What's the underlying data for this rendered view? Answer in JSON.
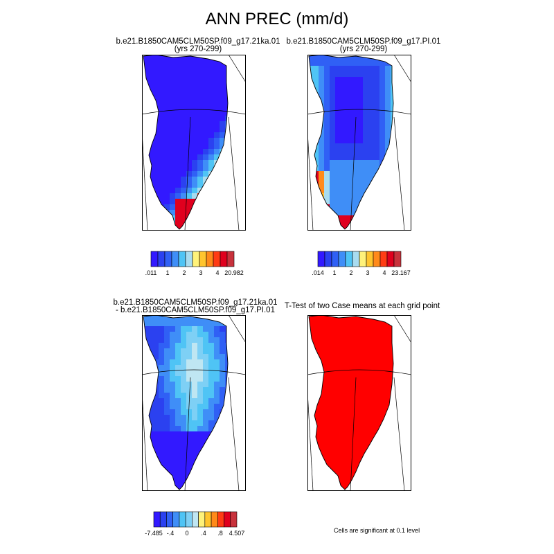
{
  "figure": {
    "title": "ANN PREC (mm/d)"
  },
  "panels": [
    {
      "title_line1": "b.e21.B1850CAM5CLM50SP.f09_g17.21ka.01",
      "title_line2": "(yrs 270-299)",
      "fill": "blue-interior"
    },
    {
      "title_line1": "b.e21.B1850CAM5CLM50SP.f09_g17.PI.01",
      "title_line2": "(yrs 270-299)",
      "fill": "pi-gradient"
    },
    {
      "title_line1": "b.e21.B1850CAM5CLM50SP.f09_g17.21ka.01",
      "title_line2": "- b.e21.B1850CAM5CLM50SP.f09_g17.PI.01",
      "fill": "difference"
    },
    {
      "title_line1": "T-Test of two Case means at each grid point",
      "title_line2": "",
      "fill": "significance"
    }
  ],
  "colorbars": [
    {
      "colors": [
        "#3219ff",
        "#2b41f0",
        "#3060f5",
        "#3f8ef7",
        "#4fc4f5",
        "#a8dcf0",
        "#fff27a",
        "#ffc52e",
        "#ff8a1a",
        "#ff3c14",
        "#e0001e",
        "#c8323c"
      ],
      "labels": [
        ".011",
        "1",
        "2",
        "3",
        "4",
        "20.982"
      ]
    },
    {
      "colors": [
        "#3219ff",
        "#2b41f0",
        "#3060f5",
        "#3f8ef7",
        "#4fc4f5",
        "#a8dcf0",
        "#fff27a",
        "#ffc52e",
        "#ff8a1a",
        "#ff3c14",
        "#e0001e",
        "#c8323c"
      ],
      "labels": [
        ".014",
        "1",
        "2",
        "3",
        "4",
        "23.167"
      ]
    },
    {
      "colors": [
        "#3219ff",
        "#2b41f0",
        "#3060f5",
        "#3f8ef7",
        "#4fc4f5",
        "#7ed0f5",
        "#bfe6f2",
        "#fff27a",
        "#ffc52e",
        "#ff8a1a",
        "#ff3c14",
        "#e0001e",
        "#c8323c"
      ],
      "labels": [
        "-7.485",
        "-.4",
        "0",
        ".4",
        ".8",
        "4.507"
      ]
    }
  ],
  "significance_note": "Cells are significant at 0.1 level",
  "colors": {
    "sig_red": "#ff0000",
    "coast": "#000000"
  }
}
